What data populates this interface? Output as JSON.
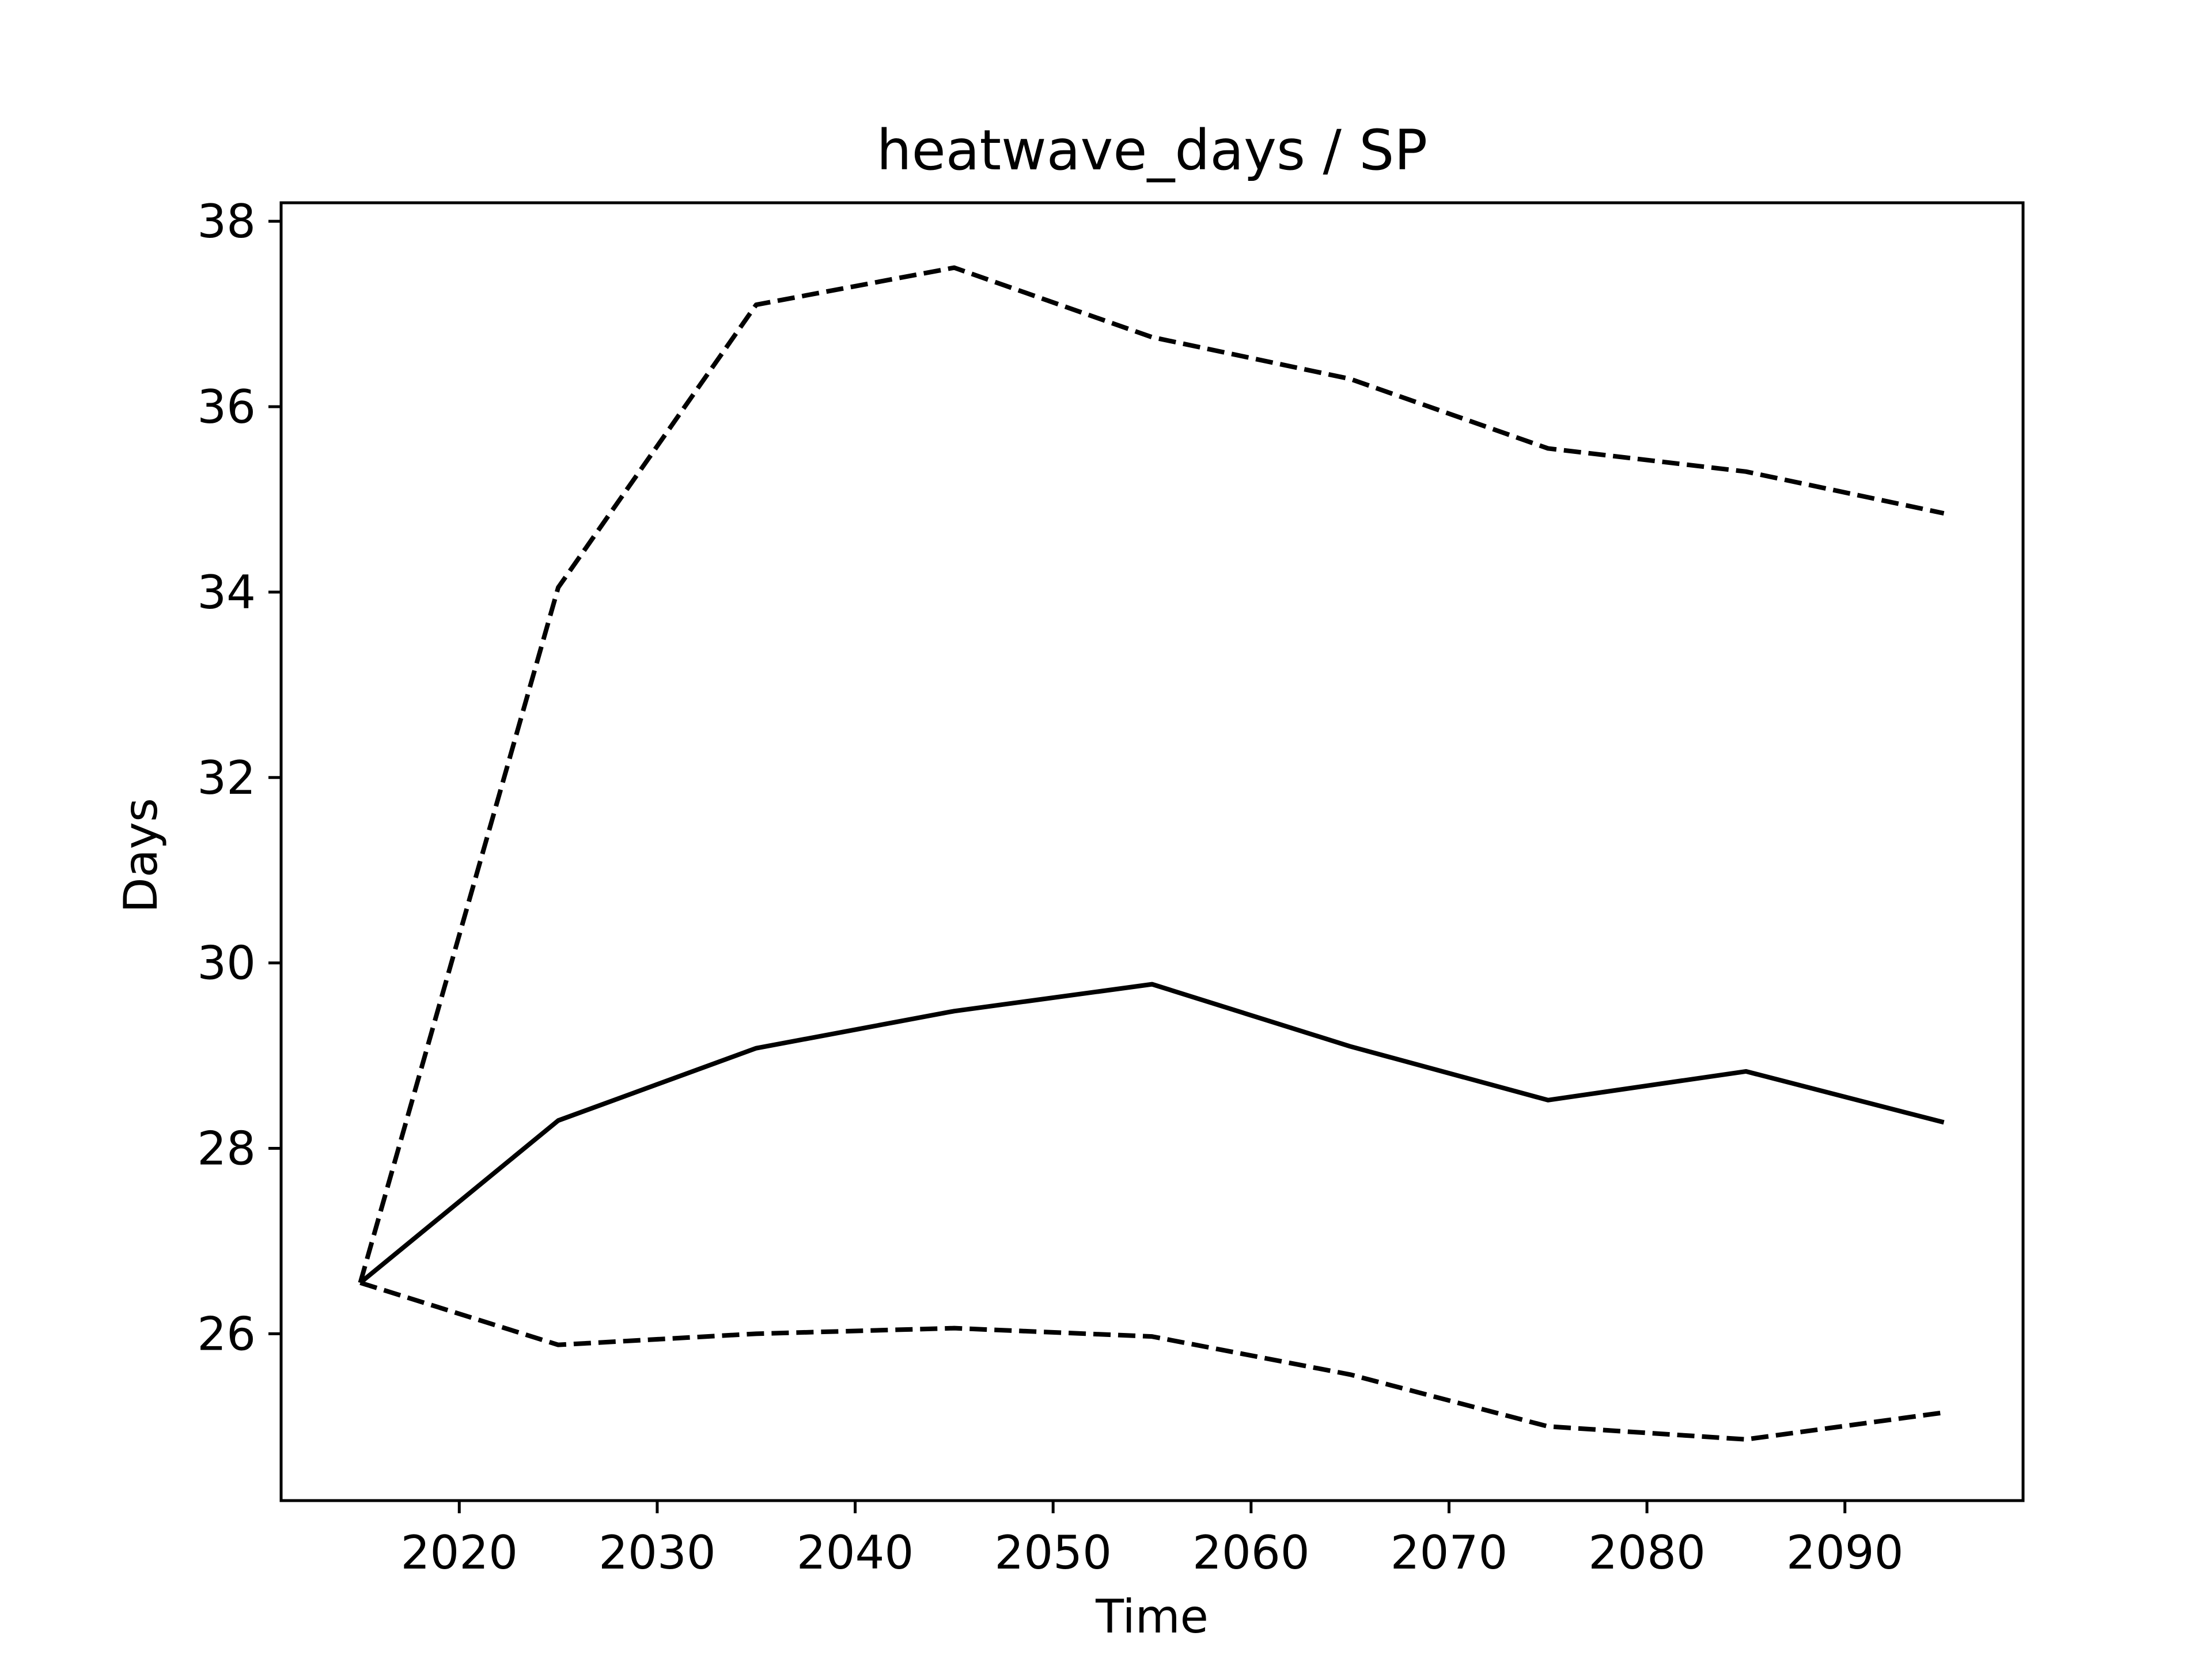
{
  "chart_data": {
    "type": "line",
    "title": "heatwave_days / SP",
    "xlabel": "Time",
    "ylabel": "Days",
    "xlim": [
      2011,
      2099
    ],
    "ylim": [
      24.2,
      38.2
    ],
    "xticks": [
      2020,
      2030,
      2040,
      2050,
      2060,
      2070,
      2080,
      2090
    ],
    "yticks": [
      26,
      28,
      30,
      32,
      34,
      36,
      38
    ],
    "grid": false,
    "x": [
      2015,
      2025,
      2035,
      2045,
      2055,
      2065,
      2075,
      2085,
      2095
    ],
    "series": [
      {
        "style": "dashed",
        "color": "#000000",
        "values": [
          26.55,
          34.05,
          37.1,
          37.5,
          36.75,
          36.3,
          35.55,
          35.3,
          34.85
        ]
      },
      {
        "style": "solid",
        "color": "#000000",
        "values": [
          26.55,
          28.3,
          29.08,
          29.48,
          29.77,
          29.1,
          28.52,
          28.83,
          28.28
        ]
      },
      {
        "style": "dashed",
        "color": "#000000",
        "values": [
          26.55,
          25.88,
          26.0,
          26.06,
          25.97,
          25.56,
          25.0,
          24.86,
          25.15
        ]
      }
    ]
  }
}
